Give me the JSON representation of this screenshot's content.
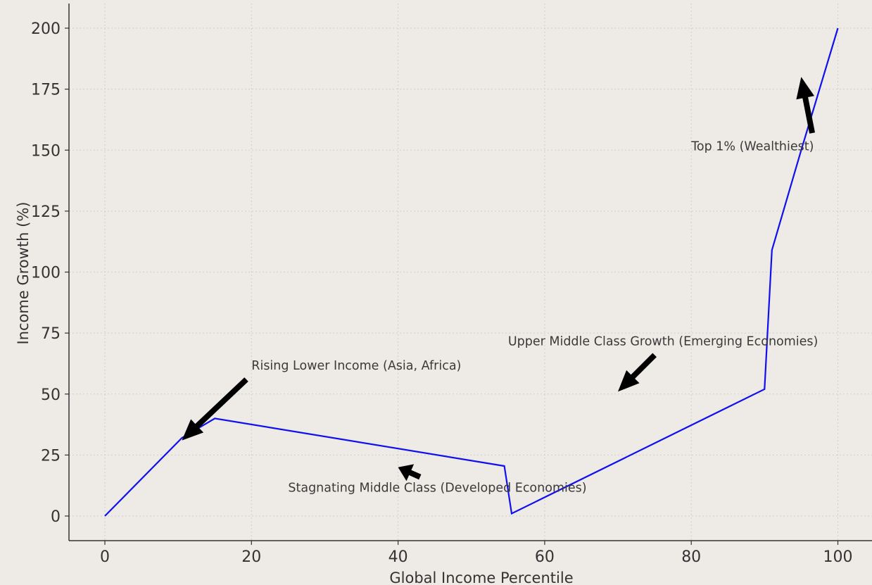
{
  "chart_data": {
    "type": "line",
    "xlabel": "Global Income Percentile",
    "ylabel": "Income Growth (%)",
    "xlim": [
      -6,
      106
    ],
    "ylim": [
      -10,
      210
    ],
    "xticks": [
      0,
      20,
      40,
      60,
      80,
      100
    ],
    "yticks": [
      0,
      25,
      50,
      75,
      100,
      125,
      150,
      175,
      200
    ],
    "grid": true,
    "series": [
      {
        "color": "#1010ee",
        "points": [
          {
            "x": 0,
            "y": 0
          },
          {
            "x": 10.5,
            "y": 32
          },
          {
            "x": 15,
            "y": 40
          },
          {
            "x": 54.5,
            "y": 20.5
          },
          {
            "x": 55.5,
            "y": 1
          },
          {
            "x": 90,
            "y": 52
          },
          {
            "x": 91,
            "y": 109
          },
          {
            "x": 95,
            "y": 150
          },
          {
            "x": 100,
            "y": 200
          }
        ]
      }
    ],
    "annotations": [
      {
        "text": "Rising Lower Income (Asia, Africa)",
        "text_x": 20,
        "text_y": 60,
        "arrow_from": [
          19.3,
          56
        ],
        "arrow_to": [
          10.5,
          31
        ]
      },
      {
        "text": "Stagnating Middle Class (Developed Economies)",
        "text_x": 25,
        "text_y": 10,
        "arrow_from": [
          43,
          16
        ],
        "arrow_to": [
          40,
          20
        ]
      },
      {
        "text": "Upper Middle Class Growth (Emerging Economies)",
        "text_x": 55,
        "text_y": 70,
        "arrow_from": [
          75,
          66
        ],
        "arrow_to": [
          70,
          51
        ]
      },
      {
        "text": "Top 1% (Wealthiest)",
        "text_x": 80,
        "text_y": 150,
        "arrow_from": [
          96.5,
          157
        ],
        "arrow_to": [
          95,
          180
        ]
      }
    ]
  }
}
